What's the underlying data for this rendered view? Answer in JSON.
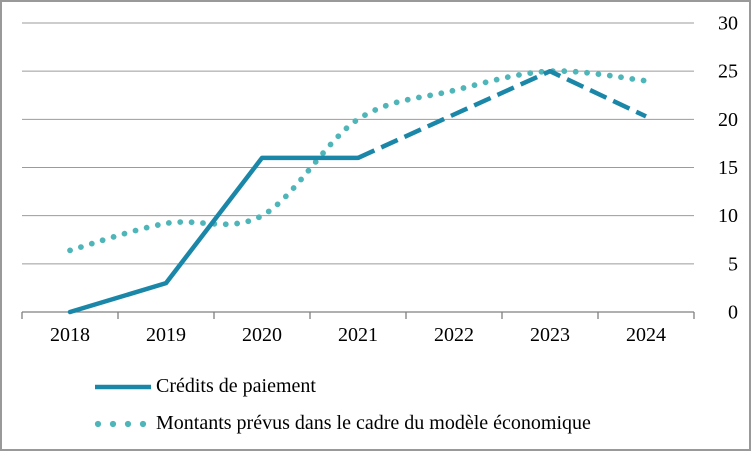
{
  "chart_data": {
    "type": "line",
    "title": "",
    "categories": [
      "2018",
      "2019",
      "2020",
      "2021",
      "2022",
      "2023",
      "2024"
    ],
    "x_axis": {
      "tick_labels": [
        "2018",
        "2019",
        "2020",
        "2021",
        "2022",
        "2023",
        "2024"
      ]
    },
    "y_axis": {
      "side": "right",
      "min": 0,
      "max": 30,
      "tick_interval": 5,
      "tick_labels": [
        "0",
        "5",
        "10",
        "15",
        "20",
        "25",
        "30"
      ]
    },
    "grid": true,
    "legend_position": "bottom-left",
    "series": [
      {
        "legend_label": "Crédits de paiement",
        "line_style": "solid",
        "smooth": false,
        "color": "#1a87a8",
        "values": [
          0,
          3,
          16,
          16,
          null,
          null,
          null
        ]
      },
      {
        "legend_label": "",
        "line_style": "dashed",
        "smooth": false,
        "color": "#1a87a8",
        "values": [
          null,
          null,
          null,
          16,
          20.5,
          25,
          20.3
        ]
      },
      {
        "legend_label": "Montants prévus dans le cadre du modèle économique",
        "line_style": "dotted",
        "smooth": true,
        "color": "#4eb5b8",
        "values": [
          6.4,
          9.2,
          10,
          20,
          23,
          25,
          24
        ]
      }
    ],
    "colors": {
      "credits_line": "#1a87a8",
      "montants_line": "#4eb5b8",
      "gridline": "#9b9b9b",
      "axis_line": "#808080",
      "text": "#000000",
      "chart_border": "#999999",
      "background": "#ffffff"
    }
  }
}
